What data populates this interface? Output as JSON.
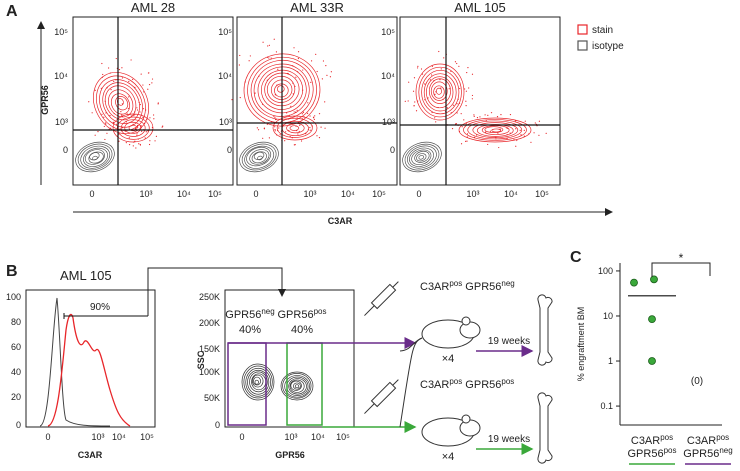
{
  "panel_labels": {
    "a": "A",
    "b": "B",
    "c": "C"
  },
  "panel_a": {
    "titles": [
      "AML 28",
      "AML 33R",
      "AML 105"
    ],
    "x_axis_label": "C3AR",
    "y_axis_label": "GPR56",
    "x_ticks": [
      "0",
      "10³",
      "10⁴",
      "10⁵"
    ],
    "y_ticks": [
      "10⁵",
      "10⁴",
      "10³",
      "0"
    ],
    "legend": [
      {
        "name": "stain",
        "color": "#e8262a"
      },
      {
        "name": "isotype",
        "color": "#555555"
      }
    ]
  },
  "panel_b": {
    "sample": "AML 105",
    "histogram": {
      "x_label": "C3AR",
      "x_ticks": [
        "0",
        "10³",
        "10⁴",
        "10⁵"
      ],
      "y_ticks": [
        "100",
        "80",
        "60",
        "40",
        "20",
        "0"
      ],
      "gate_label": "90%"
    },
    "sort_plot": {
      "x_label": "GPR56",
      "y_label": "SSC",
      "x_ticks": [
        "0",
        "10³",
        "10⁴",
        "10⁵"
      ],
      "y_ticks": [
        "250K",
        "200K",
        "150K",
        "100K",
        "50K",
        "0"
      ],
      "gates": [
        {
          "name": [
            "GPR56",
            "neg"
          ],
          "percent": "40%",
          "color": "#6a2c8a"
        },
        {
          "name": [
            "GPR56",
            "pos"
          ],
          "percent": "40%",
          "color": "#3aa83a"
        }
      ]
    },
    "arms": [
      {
        "label": [
          "C3AR",
          "pos",
          " GPR56",
          "neg"
        ],
        "count": "×4",
        "duration": "19 weeks",
        "color": "#6a2c8a"
      },
      {
        "label": [
          "C3AR",
          "pos",
          " GPR56",
          "pos"
        ],
        "count": "×4",
        "duration": "19 weeks",
        "color": "#3aa83a"
      }
    ]
  },
  "chart_data": {
    "type": "scatter",
    "y_label": "% engraftment BM",
    "log_scale": true,
    "ylim": [
      0.038,
      150
    ],
    "yticks": [
      0.1,
      1,
      10,
      100
    ],
    "significance": "*",
    "point_color": "#3aa83a",
    "groups": [
      {
        "label": [
          [
            "C3AR",
            "pos"
          ],
          [
            "GPR56",
            "pos"
          ]
        ],
        "underline_color": "#3aa83a",
        "values": [
          55,
          65,
          8.5,
          1
        ],
        "median": 28
      },
      {
        "label": [
          [
            "C3AR",
            "pos"
          ],
          [
            "GPR56",
            "neg"
          ]
        ],
        "underline_color": "#6a2c8a",
        "values": [],
        "count_label": "(0)"
      }
    ]
  }
}
